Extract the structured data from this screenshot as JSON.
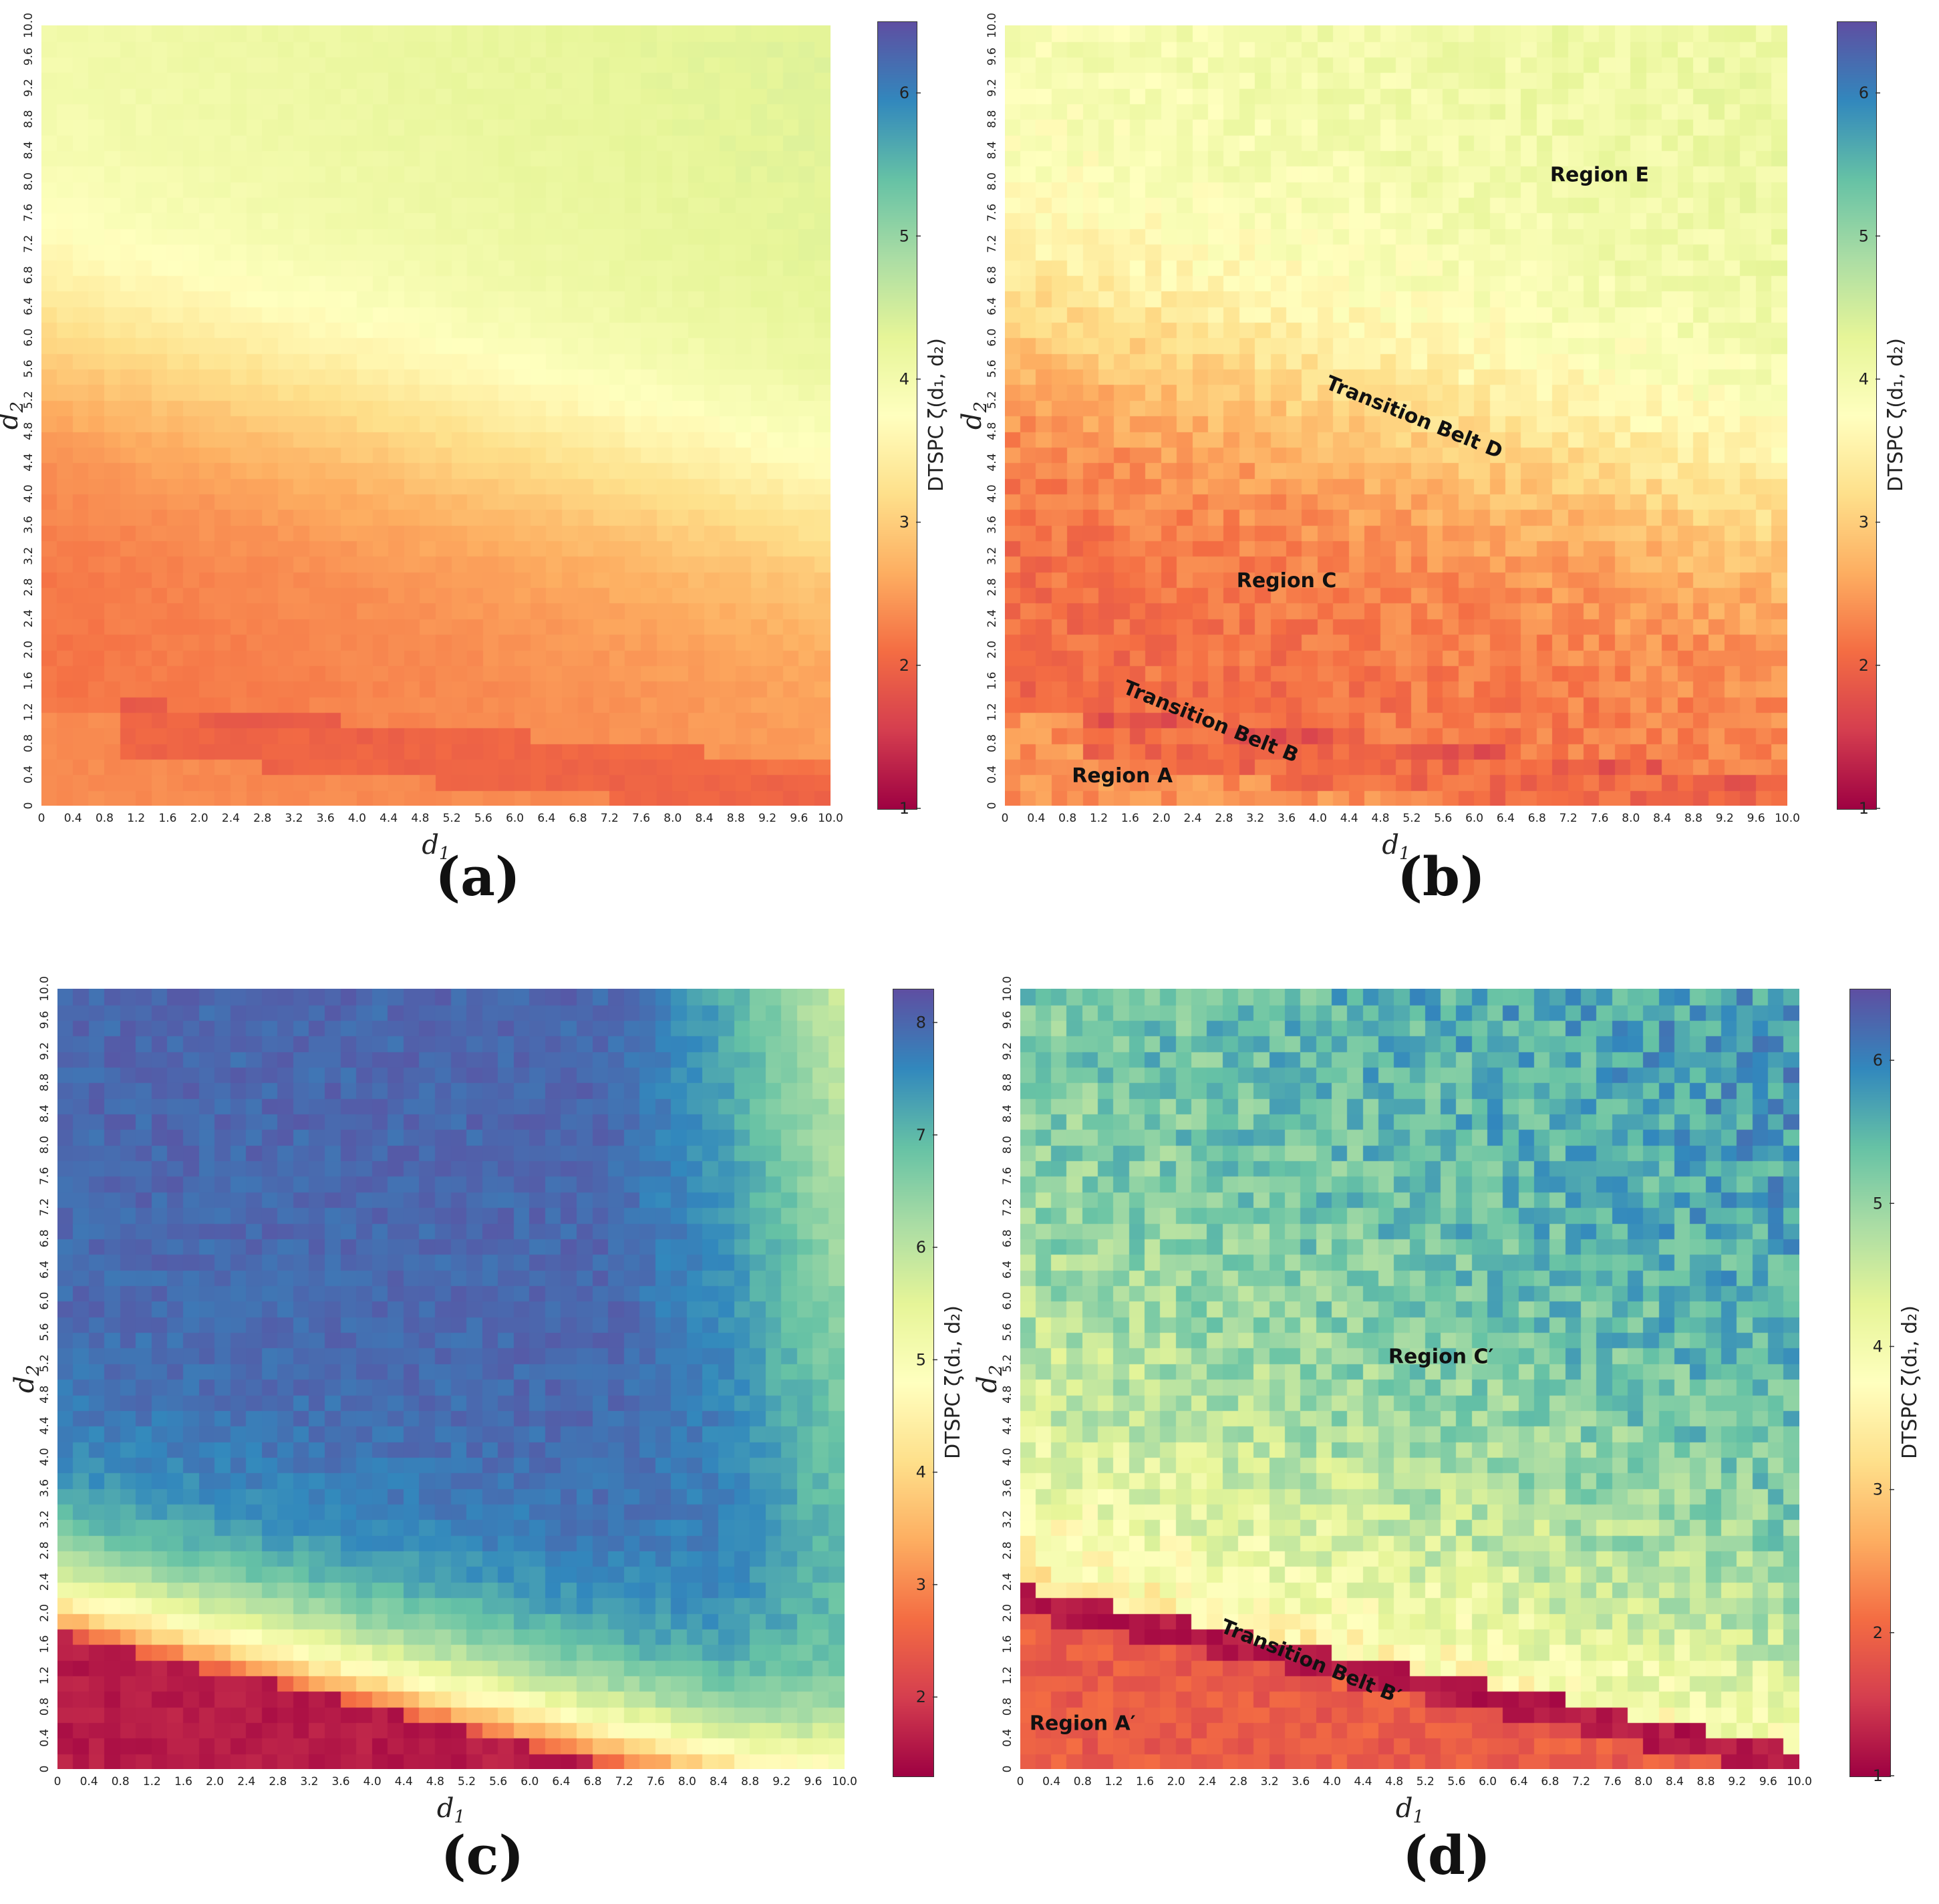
{
  "colorbar_label": "DTSPC ζ(d₁, d₂)",
  "x_label": "d",
  "x_label_sub": "1",
  "y_label": "d",
  "y_label_sub": "2",
  "tick_labels": [
    "0",
    "0.4",
    "0.8",
    "1.2",
    "1.6",
    "2.0",
    "2.4",
    "2.8",
    "3.2",
    "3.6",
    "4.0",
    "4.4",
    "4.8",
    "5.2",
    "5.6",
    "6.0",
    "6.4",
    "6.8",
    "7.2",
    "7.6",
    "8.0",
    "8.4",
    "8.8",
    "9.2",
    "9.6",
    "10.0"
  ],
  "colormap": [
    "#9e0142",
    "#d53e4f",
    "#f46d43",
    "#fdae61",
    "#fee08b",
    "#ffffbf",
    "#e6f598",
    "#abdda4",
    "#66c2a5",
    "#3288bd",
    "#5e4fa2"
  ],
  "chart_data": [
    {
      "type": "heatmap",
      "panel_label": "(a)",
      "x_range": [
        0,
        10
      ],
      "y_range": [
        0,
        10
      ],
      "grid_size": 50,
      "colorbar_range": [
        1,
        6.5
      ],
      "colorbar_ticks": [
        1,
        2,
        3,
        4,
        5,
        6
      ],
      "annotations": []
    },
    {
      "type": "heatmap",
      "panel_label": "(b)",
      "x_range": [
        0,
        10
      ],
      "y_range": [
        0,
        10
      ],
      "grid_size": 50,
      "colorbar_range": [
        1,
        6.5
      ],
      "colorbar_ticks": [
        1,
        2,
        3,
        4,
        5,
        6
      ],
      "annotations": [
        {
          "text": "Region A",
          "at": [
            1.5,
            0.3
          ]
        },
        {
          "text": "Transition Belt B",
          "at": [
            2.6,
            1.0
          ]
        },
        {
          "text": "Region C",
          "at": [
            3.6,
            2.8
          ]
        },
        {
          "text": "Transition Belt D",
          "at": [
            5.2,
            4.9
          ]
        },
        {
          "text": "Region E",
          "at": [
            7.6,
            8.0
          ]
        }
      ]
    },
    {
      "type": "heatmap",
      "panel_label": "(c)",
      "x_range": [
        0,
        10
      ],
      "y_range": [
        0,
        10
      ],
      "grid_size": 50,
      "colorbar_range": [
        1.3,
        8.3
      ],
      "colorbar_ticks": [
        2,
        3,
        4,
        5,
        6,
        7,
        8
      ],
      "annotations": []
    },
    {
      "type": "heatmap",
      "panel_label": "(d)",
      "x_range": [
        0,
        10
      ],
      "y_range": [
        0,
        10
      ],
      "grid_size": 50,
      "colorbar_range": [
        1,
        6.5
      ],
      "colorbar_ticks": [
        1,
        2,
        3,
        4,
        5,
        6
      ],
      "annotations": [
        {
          "text": "Region A′",
          "at": [
            0.8,
            0.5
          ]
        },
        {
          "text": "Transition Belt B′",
          "at": [
            3.7,
            1.3
          ]
        },
        {
          "text": "Region C′",
          "at": [
            5.4,
            5.2
          ]
        }
      ]
    }
  ]
}
